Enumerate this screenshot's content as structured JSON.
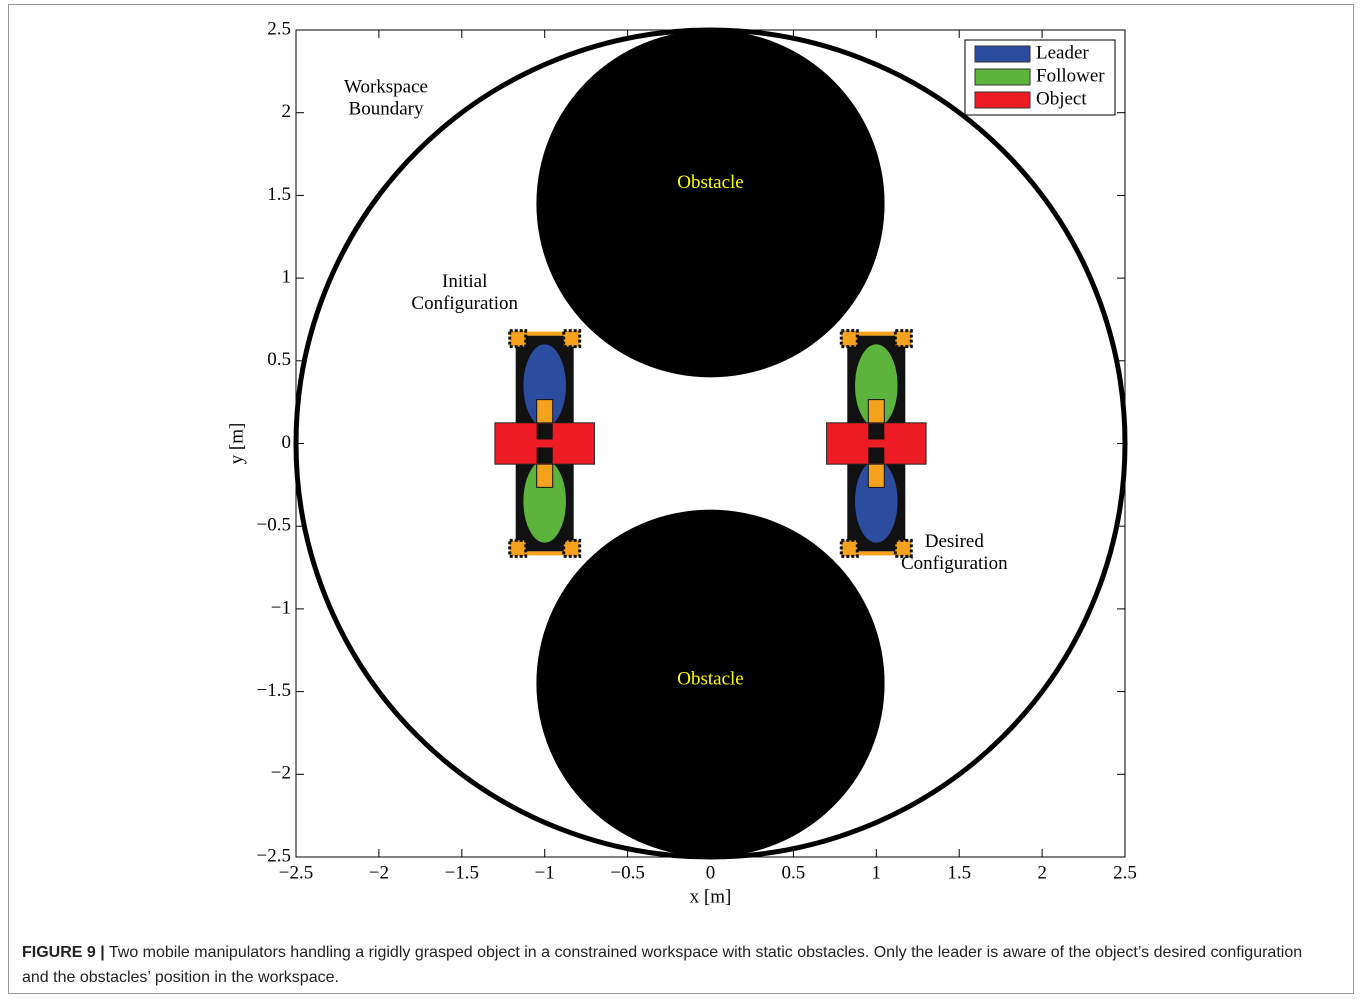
{
  "chart_data": {
    "type": "workspace",
    "xlabel": "x [m]",
    "ylabel": "y [m]",
    "xlim": [
      -2.5,
      2.5
    ],
    "ylim": [
      -2.5,
      2.5
    ],
    "xticks": [
      {
        "value": -2.5,
        "label": "−2.5"
      },
      {
        "value": -2,
        "label": "−2"
      },
      {
        "value": -1.5,
        "label": "−1.5"
      },
      {
        "value": -1,
        "label": "−1"
      },
      {
        "value": -0.5,
        "label": "−0.5"
      },
      0,
      0.5,
      1,
      1.5,
      2,
      2.5
    ],
    "yticks": [
      {
        "value": -2.5,
        "label": "−2.5"
      },
      {
        "value": -2,
        "label": "−2"
      },
      {
        "value": -1.5,
        "label": "−1.5"
      },
      {
        "value": -1,
        "label": "−1"
      },
      {
        "value": -0.5,
        "label": "−0.5"
      },
      0,
      0.5,
      1,
      1.5,
      2,
      2.5
    ],
    "boundary": {
      "label": [
        "Workspace",
        "Boundary"
      ],
      "x": 0,
      "y": 0,
      "r": 2.5
    },
    "obstacles": [
      {
        "label": "Obstacle",
        "x": 0,
        "y": 1.45,
        "r": 1.05,
        "color": "#000000",
        "label_color": "#ffff00"
      },
      {
        "label": "Obstacle",
        "x": 0,
        "y": -1.45,
        "r": 1.05,
        "color": "#000000",
        "label_color": "#ffff00"
      }
    ],
    "legend": "upper right",
    "series": [
      {
        "name": "Leader",
        "color": "#2b4c9f"
      },
      {
        "name": "Follower",
        "color": "#5cb43d"
      },
      {
        "name": "Object",
        "color": "#ed1c24"
      }
    ],
    "configurations": [
      {
        "label": [
          "Initial",
          "Configuration"
        ],
        "object": {
          "x": -1,
          "y": 0,
          "width": 0.6,
          "height": 0.25
        },
        "leader_y": 0.35,
        "follower_y": -0.35
      },
      {
        "label": [
          "Desired",
          "Configuration"
        ],
        "object": {
          "x": 1,
          "y": 0,
          "width": 0.6,
          "height": 0.25
        },
        "leader_y": -0.35,
        "follower_y": 0.35
      }
    ]
  },
  "caption": {
    "label": "FIGURE 9 |",
    "text": "Two mobile manipulators handling a rigidly grasped object in a constrained workspace with static obstacles. Only the leader is aware of the object’s desired configuration and the obstacles’ position in the workspace."
  }
}
